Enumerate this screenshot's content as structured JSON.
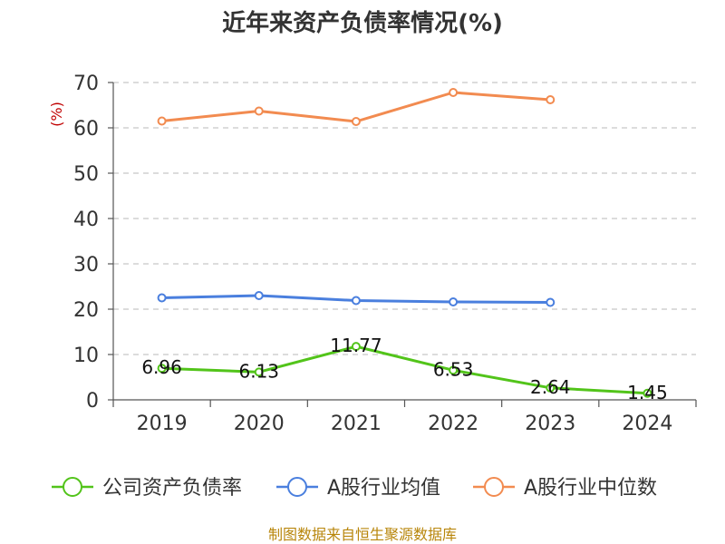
{
  "chart_data": {
    "type": "line",
    "title": "近年来资产负债率情况(%)",
    "ylabel": "(%)",
    "xlabel": "",
    "categories": [
      "2019",
      "2020",
      "2021",
      "2022",
      "2023",
      "2024"
    ],
    "ylim": [
      0,
      70
    ],
    "yticks": [
      0,
      10,
      20,
      30,
      40,
      50,
      60,
      70
    ],
    "grid": true,
    "legend_position": "bottom",
    "series": [
      {
        "name": "公司资产负债率",
        "color": "#52c41a",
        "values": [
          6.96,
          6.13,
          11.77,
          6.53,
          2.64,
          1.45
        ],
        "labels": [
          "6.96",
          "6.13",
          "11.77",
          "6.53",
          "2.64",
          "1.45"
        ]
      },
      {
        "name": "A股行业均值",
        "color": "#4a7fde",
        "values": [
          22.5,
          23.0,
          21.9,
          21.6,
          21.5,
          null
        ]
      },
      {
        "name": "A股行业中位数",
        "color": "#f28b50",
        "values": [
          61.5,
          63.7,
          61.4,
          67.8,
          66.2,
          null
        ]
      }
    ]
  },
  "source_text": "制图数据来自恒生聚源数据库"
}
